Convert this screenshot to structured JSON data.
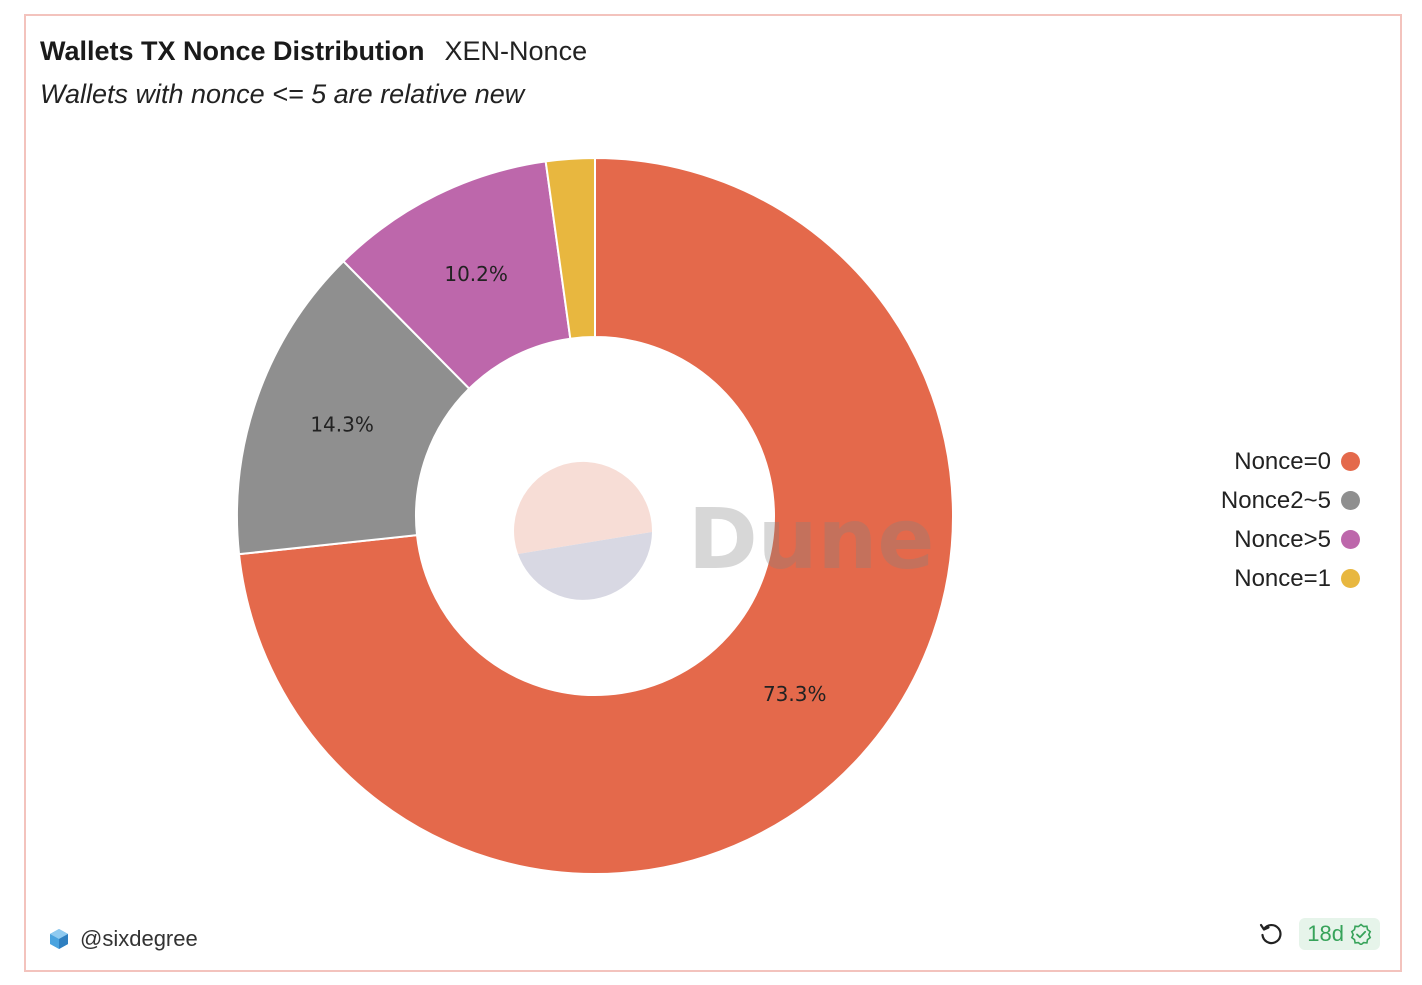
{
  "header": {
    "title": "Wallets TX Nonce Distribution",
    "query_name": "XEN-Nonce",
    "subtitle": "Wallets with nonce <= 5 are relative new"
  },
  "chart_data": {
    "type": "pie",
    "donut": true,
    "slices": [
      {
        "name": "Nonce=0",
        "value": 73.3,
        "label": "73.3%",
        "color": "#e4694b"
      },
      {
        "name": "Nonce2~5",
        "value": 14.3,
        "label": "14.3%",
        "color": "#8f8f8f"
      },
      {
        "name": "Nonce>5",
        "value": 10.2,
        "label": "10.2%",
        "color": "#bd67ab"
      },
      {
        "name": "Nonce=1",
        "value": 2.2,
        "label": "",
        "color": "#e8b73f"
      }
    ],
    "legend_position": "right",
    "watermark": "Dune"
  },
  "footer": {
    "author": "@sixdegree",
    "age": "18d",
    "author_icon": "dune-cube-icon",
    "refresh_icon": "refresh-icon",
    "verified_icon": "check-badge-icon"
  }
}
